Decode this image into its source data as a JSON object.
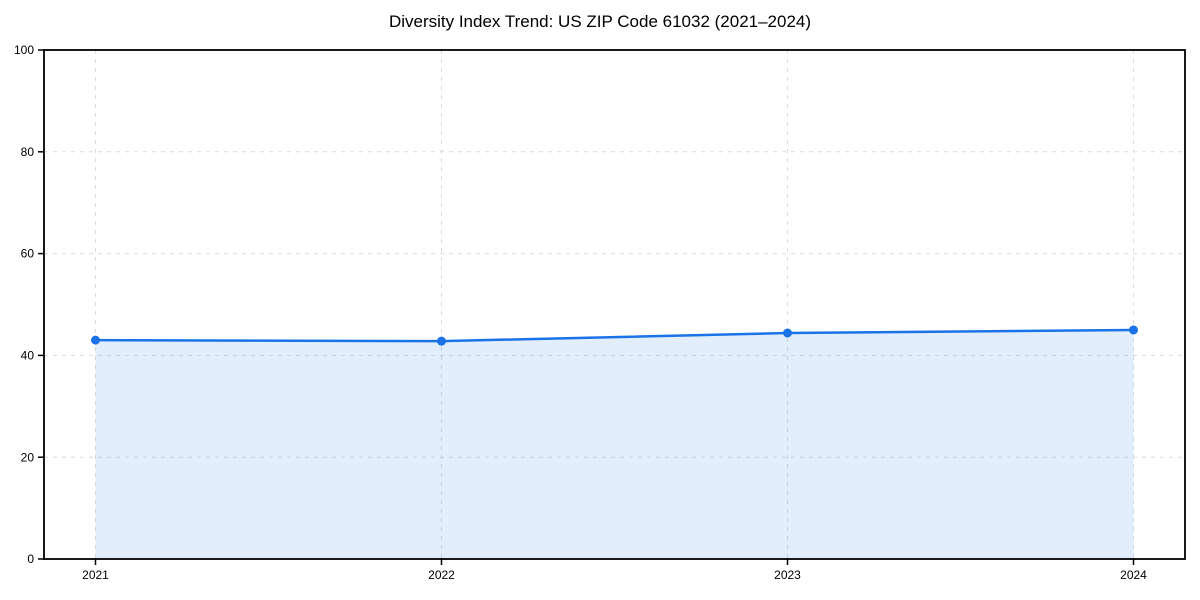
{
  "page": {
    "background_color": "#ffffff"
  },
  "chart_data": {
    "type": "area",
    "title": "Diversity Index Trend: US ZIP Code 61032 (2021–2024)",
    "x": [
      2021,
      2022,
      2023,
      2024
    ],
    "x_tick_labels": [
      "2021",
      "2022",
      "2023",
      "2024"
    ],
    "series": [
      {
        "name": "Diversity Index",
        "values": [
          43.0,
          42.8,
          44.4,
          45.0
        ]
      }
    ],
    "xlabel": "",
    "ylabel": "",
    "ylim": [
      0,
      100
    ],
    "y_ticks": [
      0,
      20,
      40,
      60,
      80,
      100
    ],
    "grid": true,
    "grid_style": "dashed",
    "legend": "none",
    "colors": {
      "line": "#1a73e8",
      "marker": "#1a73e8",
      "fill": "rgba(26,115,232,0.12)",
      "grid": "#dcdcdc",
      "axis": "#000000",
      "background": "#ffffff"
    }
  }
}
